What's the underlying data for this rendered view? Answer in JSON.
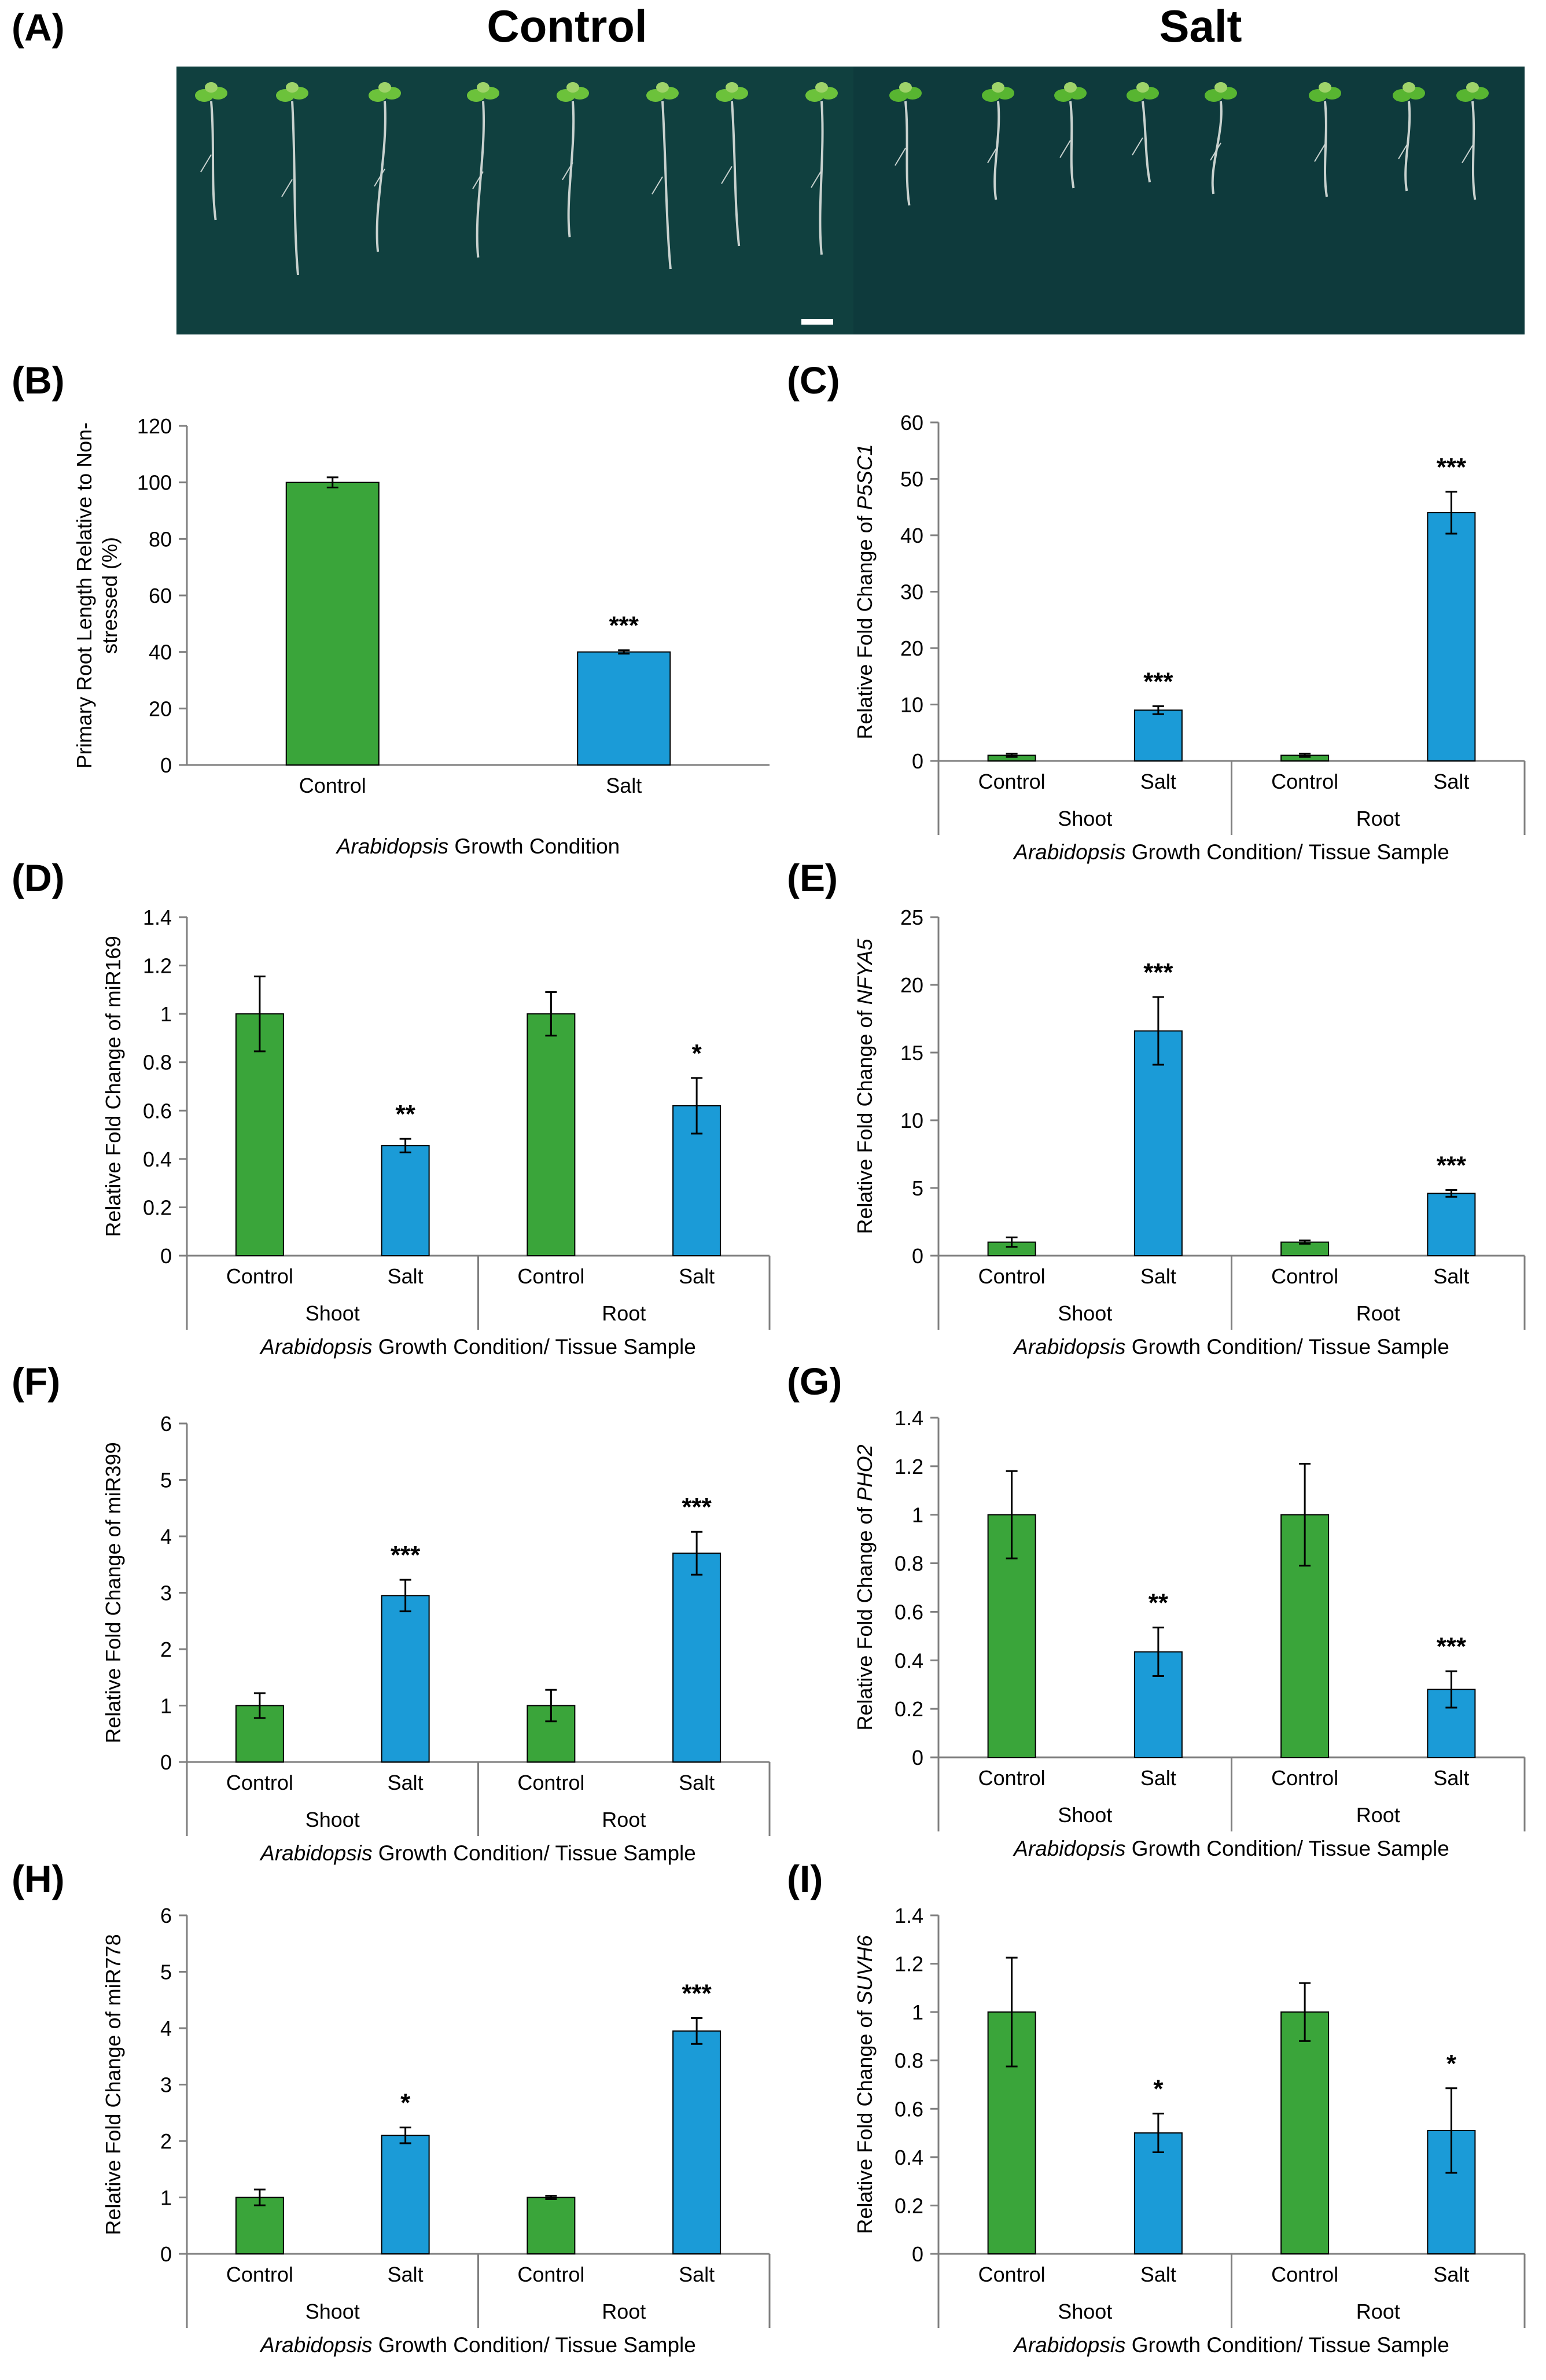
{
  "figure": {
    "photo": {
      "label": "(A)",
      "control_title": "Control",
      "salt_title": "Salt",
      "control_seedlings": 8,
      "salt_seedlings": 8,
      "background_color": "#10403f"
    },
    "colors": {
      "control": "#3aa53a",
      "salt": "#1b9bd7",
      "axis": "#7f7f7f",
      "error": "#000000"
    },
    "xlabel_italic": "Arabidopsis",
    "xlabel_rest_simple": " Growth  Condition",
    "xlabel_rest_tissue": " Growth Condition/ Tissue Sample"
  },
  "chart_data": [
    {
      "id": "B",
      "label": "(B)",
      "type": "bar",
      "grouped": false,
      "categories": [
        "Control",
        "Salt"
      ],
      "values": [
        100,
        40
      ],
      "errors": [
        1.8,
        0.6
      ],
      "stars": [
        "",
        "***"
      ],
      "ylabel_lines": [
        "Primary Root Length Relative to Non-",
        "stressed (%)"
      ],
      "ylim": [
        0,
        120
      ],
      "yticks": [
        0,
        20,
        40,
        60,
        80,
        100,
        120
      ],
      "ytick_labels": [
        "0",
        "20",
        "40",
        "60",
        "80",
        "100",
        "120"
      ]
    },
    {
      "id": "C",
      "label": "(C)",
      "type": "bar",
      "grouped": true,
      "categories": [
        "Control",
        "Salt",
        "Control",
        "Salt"
      ],
      "groups": [
        "Shoot",
        "Root"
      ],
      "values": [
        1,
        9,
        1,
        44
      ],
      "errors": [
        0.3,
        0.7,
        0.3,
        3.7
      ],
      "stars": [
        "",
        "***",
        "",
        "***"
      ],
      "ylabel_prefix": "Relative  Fold Change of ",
      "ylabel_gene": "P5SC1",
      "ylabel_gene_italic": true,
      "ylim": [
        0,
        60
      ],
      "yticks": [
        0,
        10,
        20,
        30,
        40,
        50,
        60
      ],
      "ytick_labels": [
        "0",
        "10",
        "20",
        "30",
        "40",
        "50",
        "60"
      ]
    },
    {
      "id": "D",
      "label": "(D)",
      "type": "bar",
      "grouped": true,
      "categories": [
        "Control",
        "Salt",
        "Control",
        "Salt"
      ],
      "groups": [
        "Shoot",
        "Root"
      ],
      "values": [
        1,
        0.455,
        1,
        0.62
      ],
      "errors": [
        0.155,
        0.028,
        0.09,
        0.115
      ],
      "stars": [
        "",
        "**",
        "",
        "*"
      ],
      "ylabel_prefix": "Relative  Fold Change of ",
      "ylabel_gene": "miR169",
      "ylabel_gene_italic": false,
      "ylim": [
        0,
        1.4
      ],
      "yticks": [
        0,
        0.2,
        0.4,
        0.6,
        0.8,
        1,
        1.2,
        1.4
      ],
      "ytick_labels": [
        "0",
        "0.2",
        "0.4",
        "0.6",
        "0.8",
        "1",
        "1.2",
        "1.4"
      ]
    },
    {
      "id": "E",
      "label": "(E)",
      "type": "bar",
      "grouped": true,
      "categories": [
        "Control",
        "Salt",
        "Control",
        "Salt"
      ],
      "groups": [
        "Shoot",
        "Root"
      ],
      "values": [
        1,
        16.6,
        1,
        4.6
      ],
      "errors": [
        0.35,
        2.5,
        0.12,
        0.25
      ],
      "stars": [
        "",
        "***",
        "",
        "***"
      ],
      "ylabel_prefix": "Relative  Fold Change of ",
      "ylabel_gene": "NFYA5",
      "ylabel_gene_italic": true,
      "ylim": [
        0,
        25
      ],
      "yticks": [
        0,
        5,
        10,
        15,
        20,
        25
      ],
      "ytick_labels": [
        "0",
        "5",
        "10",
        "15",
        "20",
        "25"
      ]
    },
    {
      "id": "F",
      "label": "(F)",
      "type": "bar",
      "grouped": true,
      "categories": [
        "Control",
        "Salt",
        "Control",
        "Salt"
      ],
      "groups": [
        "Shoot",
        "Root"
      ],
      "values": [
        1,
        2.95,
        1,
        3.7
      ],
      "errors": [
        0.22,
        0.28,
        0.28,
        0.38
      ],
      "stars": [
        "",
        "***",
        "",
        "***"
      ],
      "ylabel_prefix": "Relative  Fold Change of ",
      "ylabel_gene": "miR399",
      "ylabel_gene_italic": false,
      "ylim": [
        0,
        6
      ],
      "yticks": [
        0,
        1,
        2,
        3,
        4,
        5,
        6
      ],
      "ytick_labels": [
        "0",
        "1",
        "2",
        "3",
        "4",
        "5",
        "6"
      ]
    },
    {
      "id": "G",
      "label": "(G)",
      "type": "bar",
      "grouped": true,
      "categories": [
        "Control",
        "Salt",
        "Control",
        "Salt"
      ],
      "groups": [
        "Shoot",
        "Root"
      ],
      "values": [
        1,
        0.435,
        1,
        0.28
      ],
      "errors": [
        0.18,
        0.1,
        0.21,
        0.075
      ],
      "stars": [
        "",
        "**",
        "",
        "***"
      ],
      "ylabel_prefix": "Relative  Fold Change of ",
      "ylabel_gene": "PHO2",
      "ylabel_gene_italic": true,
      "ylim": [
        0,
        1.4
      ],
      "yticks": [
        0,
        0.2,
        0.4,
        0.6,
        0.8,
        1,
        1.2,
        1.4
      ],
      "ytick_labels": [
        "0",
        "0.2",
        "0.4",
        "0.6",
        "0.8",
        "1",
        "1.2",
        "1.4"
      ]
    },
    {
      "id": "H",
      "label": "(H)",
      "type": "bar",
      "grouped": true,
      "categories": [
        "Control",
        "Salt",
        "Control",
        "Salt"
      ],
      "groups": [
        "Shoot",
        "Root"
      ],
      "values": [
        1,
        2.1,
        1,
        3.95
      ],
      "errors": [
        0.14,
        0.14,
        0.03,
        0.23
      ],
      "stars": [
        "",
        "*",
        "",
        "***"
      ],
      "ylabel_prefix": "Relative  Fold Change of ",
      "ylabel_gene": "miR778",
      "ylabel_gene_italic": false,
      "ylim": [
        0,
        6
      ],
      "yticks": [
        0,
        1,
        2,
        3,
        4,
        5,
        6
      ],
      "ytick_labels": [
        "0",
        "1",
        "2",
        "3",
        "4",
        "5",
        "6"
      ]
    },
    {
      "id": "I",
      "label": "(I)",
      "type": "bar",
      "grouped": true,
      "categories": [
        "Control",
        "Salt",
        "Control",
        "Salt"
      ],
      "groups": [
        "Shoot",
        "Root"
      ],
      "values": [
        1,
        0.5,
        1,
        0.51
      ],
      "errors": [
        0.225,
        0.08,
        0.12,
        0.175
      ],
      "stars": [
        "",
        "*",
        "",
        "*"
      ],
      "ylabel_prefix": "Relative  Fold Change of ",
      "ylabel_gene": "SUVH6",
      "ylabel_gene_italic": true,
      "ylim": [
        0,
        1.4
      ],
      "yticks": [
        0,
        0.2,
        0.4,
        0.6,
        0.8,
        1,
        1.2,
        1.4
      ],
      "ytick_labels": [
        "0",
        "0.2",
        "0.4",
        "0.6",
        "0.8",
        "1",
        "1.2",
        "1.4"
      ]
    }
  ]
}
